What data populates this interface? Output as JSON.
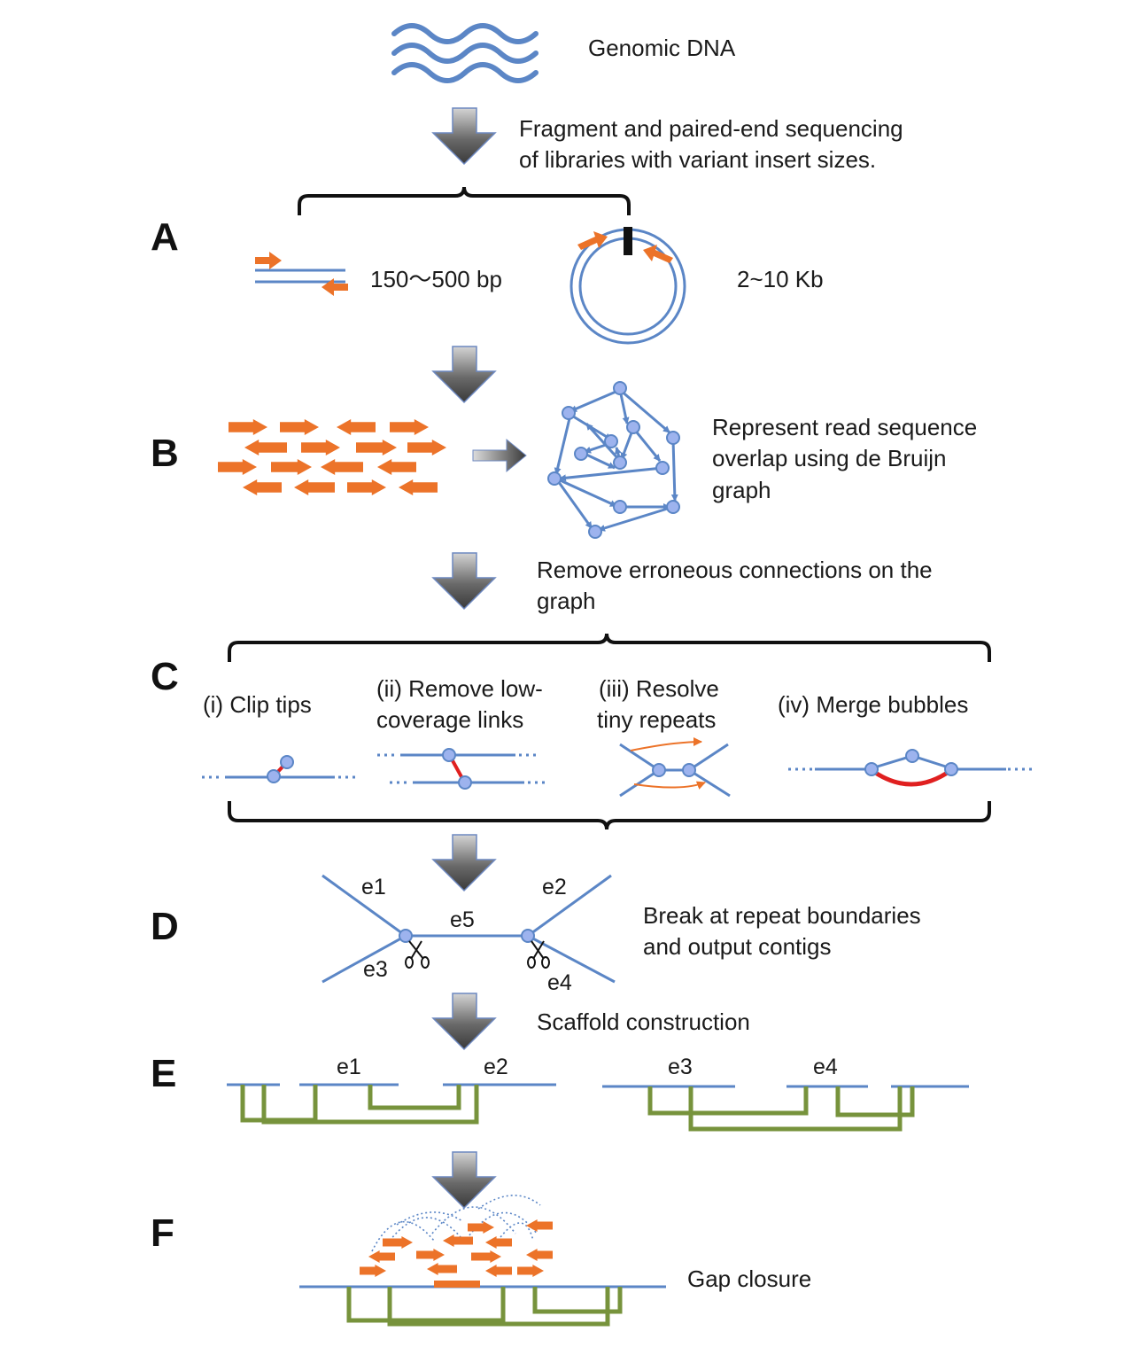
{
  "colors": {
    "blue": "#5b86c6",
    "orange": "#ec7329",
    "green": "#77933c",
    "red": "#e02020",
    "node_fill": "#9db3ee",
    "black": "#111111"
  },
  "top": {
    "genomic_dna": "Genomic DNA"
  },
  "steps": {
    "fragment": [
      "Fragment and paired-end sequencing",
      "of libraries with variant insert sizes."
    ],
    "graph": [
      "Represent read sequence",
      "overlap using de Bruijn",
      "graph"
    ],
    "remove": [
      "Remove erroneous connections on  the",
      "graph"
    ],
    "break": [
      "Break at repeat boundaries",
      "and output contigs"
    ],
    "scaffold": "Scaffold construction",
    "gap": "Gap closure"
  },
  "panels": {
    "a": "A",
    "b": "B",
    "c": "C",
    "d": "D",
    "e": "E",
    "f": "F"
  },
  "panel_a": {
    "short_insert": "150～500 bp",
    "long_insert": "2~10 Kb"
  },
  "panel_c": {
    "items": [
      {
        "lines": [
          "(i) Clip tips"
        ]
      },
      {
        "lines": [
          "(ii) Remove low-",
          "coverage links"
        ]
      },
      {
        "lines": [
          "(iii) Resolve",
          "tiny repeats"
        ]
      },
      {
        "lines": [
          "(iv) Merge bubbles"
        ]
      }
    ]
  },
  "panel_d": {
    "edges": [
      "e1",
      "e2",
      "e3",
      "e4",
      "e5"
    ]
  },
  "panel_e": {
    "contigs": [
      "e1",
      "e2",
      "e3",
      "e4"
    ]
  }
}
